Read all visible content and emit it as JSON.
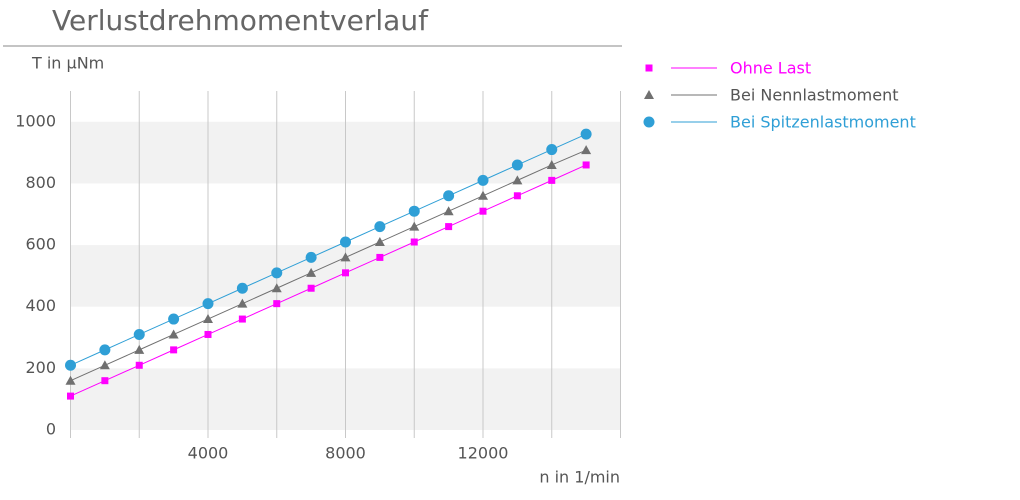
{
  "chart_data": {
    "type": "line",
    "title": "Verlustdrehmomentverlauf",
    "y_label": "T in µNm",
    "x_label": "n in 1/min",
    "x": [
      0,
      1000,
      2000,
      3000,
      4000,
      5000,
      6000,
      7000,
      8000,
      9000,
      10000,
      11000,
      12000,
      13000,
      14000,
      15000
    ],
    "series": [
      {
        "name": "Ohne Last",
        "color": "#ff00ff",
        "marker": "square",
        "values": [
          110,
          160,
          210,
          260,
          310,
          360,
          410,
          460,
          510,
          560,
          610,
          660,
          710,
          760,
          810,
          860
        ]
      },
      {
        "name": "Bei Nennlastmoment",
        "color": "#707070",
        "marker": "triangle",
        "values": [
          160,
          210,
          260,
          310,
          360,
          410,
          460,
          510,
          560,
          610,
          660,
          710,
          760,
          810,
          860,
          908
        ]
      },
      {
        "name": "Bei Spitzenlastmoment",
        "color": "#2f9fd6",
        "marker": "circle",
        "values": [
          210,
          260,
          310,
          360,
          410,
          460,
          510,
          560,
          610,
          660,
          710,
          760,
          810,
          860,
          910,
          960
        ]
      }
    ],
    "xlim": [
      0,
      16000
    ],
    "xticks": [
      4000,
      8000,
      12000
    ],
    "xgrid": [
      2000,
      4000,
      6000,
      8000,
      10000,
      12000,
      14000,
      16000
    ],
    "ylim": [
      0,
      1100
    ],
    "yticks": [
      0,
      200,
      400,
      600,
      800,
      1000
    ],
    "banded_grid": true,
    "legend": "right"
  }
}
